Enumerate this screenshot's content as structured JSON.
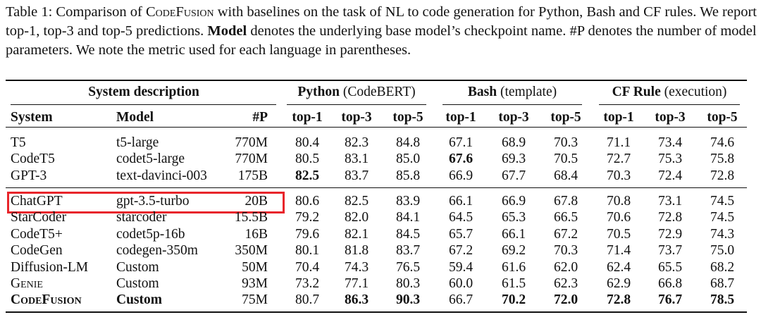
{
  "caption": [
    "Table 1: Comparison of ",
    "CodeFusion",
    " with baselines on the task of NL to code generation for Python, Bash and CF rules. We report top-1, top-3 and top-5 predictions. ",
    "Model",
    " denotes the underlying base model’s checkpoint name. #P denotes the number of model parameters. We note the metric used for each language in parentheses."
  ],
  "table": {
    "groups": [
      {
        "name": "System description"
      },
      {
        "name": "Python",
        "metric": "(CodeBERT)"
      },
      {
        "name": "Bash",
        "metric": "(template)"
      },
      {
        "name": "CF Rule",
        "metric": "(execution)"
      }
    ],
    "columns": [
      "System",
      "Model",
      "#P",
      "top-1",
      "top-3",
      "top-5",
      "top-1",
      "top-3",
      "top-5",
      "top-1",
      "top-3",
      "top-5"
    ],
    "sections": [
      [
        {
          "cells": [
            "T5",
            "t5-large",
            "770M",
            "80.4",
            "82.3",
            "84.8",
            "67.1",
            "68.9",
            "70.3",
            "71.1",
            "73.4",
            "74.6"
          ]
        },
        {
          "cells": [
            "CodeT5",
            "codet5-large",
            "770M",
            "80.5",
            "83.1",
            "85.0",
            "67.6",
            "69.3",
            "70.5",
            "72.7",
            "75.3",
            "75.8"
          ],
          "bold": [
            6
          ]
        },
        {
          "cells": [
            "GPT-3",
            "text-davinci-003",
            "175B",
            "82.5",
            "83.7",
            "85.8",
            "66.9",
            "67.7",
            "68.4",
            "70.3",
            "72.4",
            "72.8"
          ],
          "bold": [
            3
          ]
        }
      ],
      [
        {
          "cells": [
            "ChatGPT",
            "gpt-3.5-turbo",
            "20B",
            "80.6",
            "82.5",
            "83.9",
            "66.1",
            "66.9",
            "67.8",
            "70.8",
            "73.1",
            "74.5"
          ],
          "highlight": true
        },
        {
          "cells": [
            "StarCoder",
            "starcoder",
            "15.5B",
            "79.2",
            "82.0",
            "84.1",
            "64.5",
            "65.3",
            "66.5",
            "70.6",
            "72.8",
            "74.5"
          ]
        },
        {
          "cells": [
            "CodeT5+",
            "codet5p-16b",
            "16B",
            "79.6",
            "82.1",
            "84.5",
            "65.7",
            "66.1",
            "67.2",
            "70.5",
            "72.9",
            "74.3"
          ]
        },
        {
          "cells": [
            "CodeGen",
            "codegen-350m",
            "350M",
            "80.1",
            "81.8",
            "83.7",
            "67.2",
            "69.2",
            "70.3",
            "71.4",
            "73.7",
            "75.0"
          ]
        },
        {
          "cells": [
            "Diffusion-LM",
            "Custom",
            "50M",
            "70.4",
            "74.3",
            "76.5",
            "59.4",
            "61.6",
            "62.0",
            "62.4",
            "65.5",
            "68.2"
          ]
        },
        {
          "cells": [
            "Genie",
            "Custom",
            "93M",
            "73.2",
            "77.1",
            "80.3",
            "60.0",
            "61.5",
            "62.3",
            "62.9",
            "66.8",
            "68.7"
          ],
          "smallcaps": true
        },
        {
          "cells": [
            "CodeFusion",
            "Custom",
            "75M",
            "80.7",
            "86.3",
            "90.3",
            "66.7",
            "70.2",
            "72.0",
            "72.8",
            "76.7",
            "78.5"
          ],
          "smallcaps": true,
          "bold": [
            0,
            1,
            4,
            5,
            7,
            8,
            9,
            10,
            11
          ]
        }
      ]
    ]
  }
}
